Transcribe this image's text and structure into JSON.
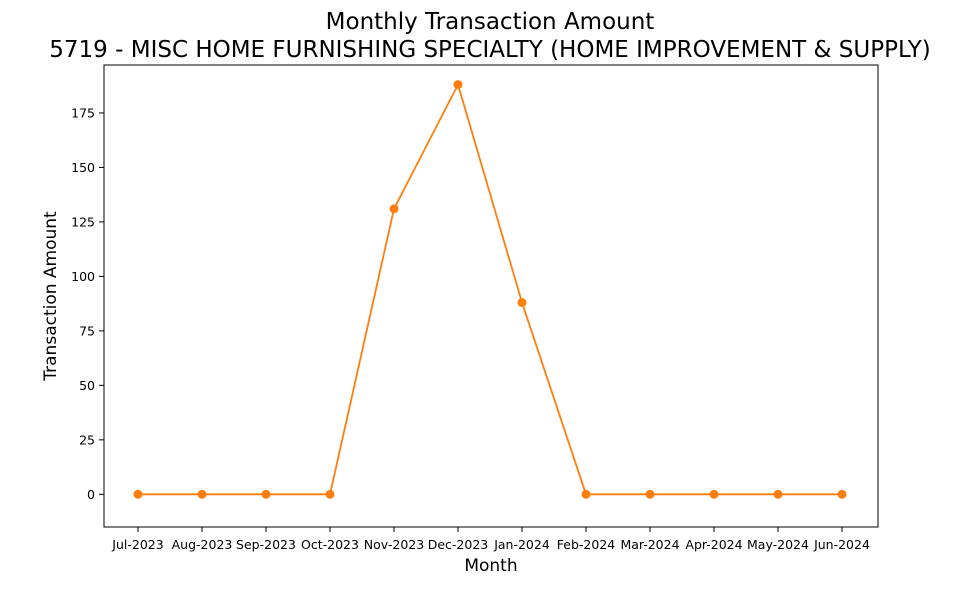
{
  "chart_data": {
    "type": "line",
    "title": "Monthly Transaction Amount",
    "subtitle": "5719 - MISC HOME FURNISHING SPECIALTY (HOME IMPROVEMENT & SUPPLY)",
    "xlabel": "Month",
    "ylabel": "Transaction Amount",
    "categories": [
      "Jul-2023",
      "Aug-2023",
      "Sep-2023",
      "Oct-2023",
      "Nov-2023",
      "Dec-2023",
      "Jan-2024",
      "Feb-2024",
      "Mar-2024",
      "Apr-2024",
      "May-2024",
      "Jun-2024"
    ],
    "values": [
      0,
      0,
      0,
      0,
      131,
      188,
      88,
      0,
      0,
      0,
      0,
      0
    ],
    "ylim": [
      -15,
      197
    ],
    "yticks": [
      0,
      25,
      50,
      75,
      100,
      125,
      150,
      175
    ],
    "grid": false,
    "legend": "none",
    "color": "#ff7f0e"
  }
}
